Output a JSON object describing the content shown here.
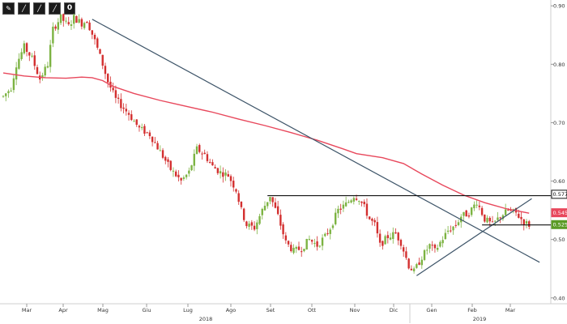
{
  "toolbar": {
    "buttons": [
      {
        "icon": "pencil-icon"
      },
      {
        "icon": "draw-line-icon"
      },
      {
        "icon": "draw-line-icon"
      },
      {
        "icon": "draw-line-icon"
      },
      {
        "label": "0"
      }
    ]
  },
  "colors": {
    "up": "#7cb342",
    "down": "#d32f2f",
    "ma": "#e8485c",
    "trendline": "#3d5468",
    "level": "#111111",
    "grid": "#ececec",
    "badge_black": "#111111",
    "badge_red": "#e8485c",
    "badge_green": "#5a9a25"
  },
  "chart_data": {
    "type": "candlestick",
    "x_axis": {
      "months": [
        "Mar",
        "Apr",
        "Mag",
        "Giu",
        "Lug",
        "Ago",
        "Set",
        "Ott",
        "Nov",
        "Dic",
        "Gen",
        "Feb",
        "Mar"
      ],
      "years": [
        "2018",
        "2019"
      ]
    },
    "y_axis": {
      "ticks": [
        0.4,
        0.5,
        0.6,
        0.7,
        0.8,
        0.9
      ],
      "tick_labels": [
        "0.40",
        "0.50",
        "0.60",
        "0.70",
        "0.80",
        "0.90"
      ],
      "range": [
        0.39,
        0.91
      ]
    },
    "price_path": [
      [
        0,
        0.745
      ],
      [
        3,
        0.76
      ],
      [
        5,
        0.8
      ],
      [
        8,
        0.83
      ],
      [
        11,
        0.81
      ],
      [
        14,
        0.775
      ],
      [
        17,
        0.8
      ],
      [
        19,
        0.86
      ],
      [
        22,
        0.88
      ],
      [
        25,
        0.865
      ],
      [
        27,
        0.88
      ],
      [
        30,
        0.87
      ],
      [
        32,
        0.875
      ],
      [
        35,
        0.84
      ],
      [
        38,
        0.8
      ],
      [
        40,
        0.77
      ],
      [
        43,
        0.74
      ],
      [
        48,
        0.715
      ],
      [
        52,
        0.69
      ],
      [
        56,
        0.68
      ],
      [
        60,
        0.65
      ],
      [
        64,
        0.62
      ],
      [
        68,
        0.6
      ],
      [
        71,
        0.615
      ],
      [
        74,
        0.655
      ],
      [
        77,
        0.645
      ],
      [
        80,
        0.625
      ],
      [
        83,
        0.615
      ],
      [
        86,
        0.61
      ],
      [
        89,
        0.585
      ],
      [
        91,
        0.55
      ],
      [
        93,
        0.525
      ],
      [
        96,
        0.52
      ],
      [
        99,
        0.55
      ],
      [
        102,
        0.575
      ],
      [
        105,
        0.54
      ],
      [
        108,
        0.495
      ],
      [
        111,
        0.48
      ],
      [
        114,
        0.485
      ],
      [
        117,
        0.5
      ],
      [
        120,
        0.49
      ],
      [
        123,
        0.505
      ],
      [
        125,
        0.52
      ],
      [
        128,
        0.55
      ],
      [
        131,
        0.56
      ],
      [
        134,
        0.575
      ],
      [
        136,
        0.57
      ],
      [
        138,
        0.555
      ],
      [
        140,
        0.535
      ],
      [
        142,
        0.525
      ],
      [
        144,
        0.49
      ],
      [
        147,
        0.505
      ],
      [
        150,
        0.51
      ],
      [
        152,
        0.495
      ],
      [
        155,
        0.455
      ],
      [
        157,
        0.445
      ],
      [
        160,
        0.47
      ],
      [
        163,
        0.49
      ],
      [
        165,
        0.48
      ],
      [
        167,
        0.495
      ],
      [
        170,
        0.515
      ],
      [
        173,
        0.525
      ],
      [
        175,
        0.54
      ],
      [
        178,
        0.545
      ],
      [
        181,
        0.565
      ],
      [
        184,
        0.535
      ],
      [
        187,
        0.525
      ],
      [
        190,
        0.54
      ],
      [
        193,
        0.55
      ],
      [
        196,
        0.545
      ],
      [
        199,
        0.53
      ],
      [
        201,
        0.525
      ]
    ],
    "moving_average": [
      [
        0,
        0.785
      ],
      [
        8,
        0.78
      ],
      [
        16,
        0.777
      ],
      [
        24,
        0.776
      ],
      [
        30,
        0.778
      ],
      [
        34,
        0.777
      ],
      [
        38,
        0.772
      ],
      [
        42,
        0.762
      ],
      [
        50,
        0.75
      ],
      [
        60,
        0.738
      ],
      [
        70,
        0.728
      ],
      [
        80,
        0.718
      ],
      [
        90,
        0.706
      ],
      [
        100,
        0.695
      ],
      [
        110,
        0.683
      ],
      [
        120,
        0.67
      ],
      [
        130,
        0.655
      ],
      [
        135,
        0.647
      ],
      [
        145,
        0.64
      ],
      [
        153,
        0.63
      ],
      [
        160,
        0.612
      ],
      [
        168,
        0.593
      ],
      [
        176,
        0.576
      ],
      [
        184,
        0.563
      ],
      [
        192,
        0.553
      ],
      [
        201,
        0.545
      ]
    ],
    "trendlines": [
      {
        "from": [
          34,
          0.877
        ],
        "to": [
          205,
          0.461
        ]
      },
      {
        "from": [
          158,
          0.438
        ],
        "to": [
          202,
          0.57
        ]
      }
    ],
    "levels": [
      {
        "value": 0.575,
        "from_bar": 101,
        "to_bar": 205
      },
      {
        "value": 0.525,
        "from_bar": 183,
        "to_bar": 205
      }
    ],
    "price_badges": [
      {
        "value": 0.5774,
        "label": "0.5774",
        "color": "#111111"
      },
      {
        "value": 0.5458,
        "label": "0.5458",
        "color": "#e8485c"
      },
      {
        "value": 0.5255,
        "label": "0.5255",
        "color": "#5a9a25"
      }
    ],
    "bars": 205
  }
}
